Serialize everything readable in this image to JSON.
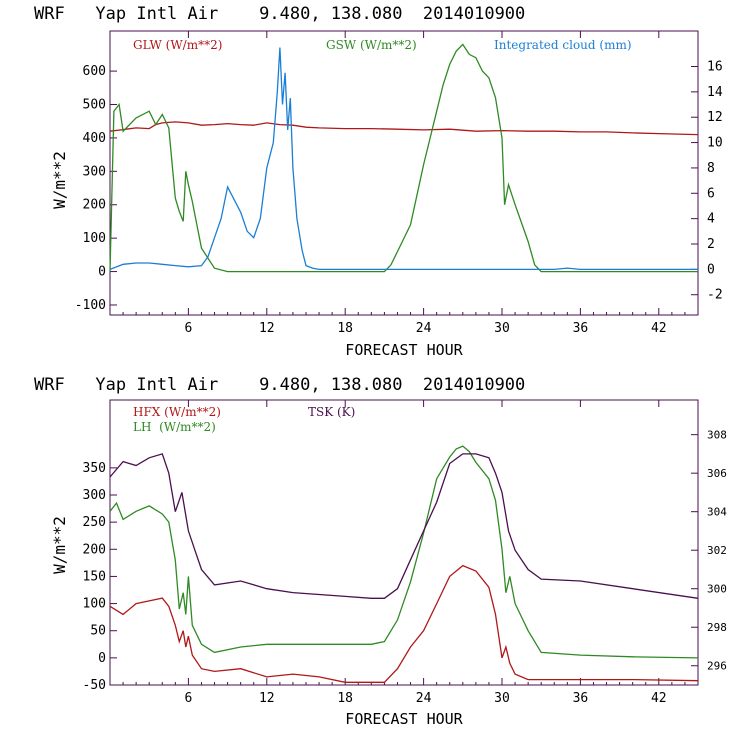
{
  "top": {
    "title": "WRF   Yap Intl Air    9.480, 138.080  2014010900",
    "ylabel": "W/m**2",
    "xlabel": "FORECAST HOUR",
    "legend": {
      "glw": "GLW (W/m**2)",
      "gsw": "GSW (W/m**2)",
      "cloud": "Integrated cloud (mm)"
    }
  },
  "bottom": {
    "title": "WRF   Yap Intl Air    9.480, 138.080  2014010900",
    "ylabel": "W/m**2",
    "xlabel": "FORECAST HOUR",
    "legend": {
      "hfx": "HFX (W/m**2)",
      "lh": "LH  (W/m**2)",
      "tsk": "TSK (K)"
    }
  },
  "colors": {
    "red": "#b01818",
    "green": "#2f8a24",
    "blue": "#1a7fd4",
    "purple": "#4a0f4f",
    "axis": "#4a0f4f"
  },
  "chart_data": [
    {
      "type": "line",
      "title": "WRF   Yap Intl Air    9.480, 138.080  2014010900",
      "xlabel": "FORECAST HOUR",
      "ylabel": "W/m**2",
      "xlim": [
        0,
        45
      ],
      "ylim": [
        -130,
        720
      ],
      "y2lim": [
        -3.6,
        18.8
      ],
      "xticks": [
        6,
        12,
        18,
        24,
        30,
        36,
        42
      ],
      "yticks": [
        -100,
        0,
        100,
        200,
        300,
        400,
        500,
        600
      ],
      "y2ticks": [
        -2,
        0,
        2,
        4,
        6,
        8,
        10,
        12,
        14,
        16
      ],
      "series": [
        {
          "name": "GLW (W/m**2)",
          "axis": "left",
          "x": [
            0,
            1,
            2,
            3,
            3.5,
            4,
            5,
            6,
            7,
            8,
            9,
            10,
            11,
            12,
            13,
            14,
            15,
            16,
            18,
            20,
            22,
            24,
            26,
            28,
            30,
            32,
            34,
            36,
            38,
            40,
            42,
            45
          ],
          "y": [
            420,
            425,
            430,
            428,
            440,
            445,
            448,
            445,
            438,
            440,
            443,
            440,
            438,
            445,
            440,
            438,
            432,
            430,
            428,
            428,
            426,
            424,
            426,
            420,
            422,
            420,
            420,
            418,
            418,
            415,
            413,
            410
          ]
        },
        {
          "name": "GSW (W/m**2)",
          "axis": "left",
          "x": [
            0,
            0.3,
            0.7,
            1,
            2,
            3,
            3.5,
            4,
            4.5,
            5,
            5.3,
            5.6,
            5.8,
            6,
            6.3,
            6.6,
            7,
            7.5,
            8,
            9,
            12,
            18,
            21,
            21.5,
            22,
            23,
            24,
            25,
            25.5,
            26,
            26.5,
            27,
            27.5,
            28,
            28.5,
            29,
            29.5,
            30,
            30.2,
            30.5,
            31,
            32,
            32.5,
            33,
            36,
            45
          ],
          "y": [
            0,
            480,
            500,
            420,
            460,
            480,
            440,
            470,
            430,
            220,
            180,
            150,
            300,
            260,
            210,
            150,
            70,
            40,
            10,
            0,
            0,
            0,
            0,
            20,
            60,
            140,
            320,
            480,
            560,
            620,
            660,
            680,
            650,
            640,
            600,
            580,
            520,
            400,
            200,
            260,
            200,
            90,
            20,
            0,
            0,
            0
          ]
        },
        {
          "name": "Integrated cloud (mm)",
          "axis": "right",
          "x": [
            0,
            1,
            2,
            3,
            4,
            5,
            6,
            7,
            7.5,
            8,
            8.5,
            9,
            9.5,
            10,
            10.5,
            11,
            11.5,
            12,
            12.5,
            12.8,
            13,
            13.2,
            13.4,
            13.6,
            13.8,
            14,
            14.3,
            14.7,
            15,
            15.5,
            16,
            18,
            20,
            22,
            24,
            26,
            28,
            30,
            32,
            34,
            35,
            36,
            45
          ],
          "y": [
            0.0,
            0.4,
            0.5,
            0.5,
            0.4,
            0.3,
            0.2,
            0.3,
            1.0,
            2.5,
            4.0,
            6.5,
            5.5,
            4.5,
            3.0,
            2.5,
            4.0,
            8.0,
            10.0,
            14.0,
            17.5,
            13.0,
            15.5,
            11.0,
            13.5,
            8.0,
            4.0,
            1.5,
            0.3,
            0.1,
            0.0,
            0.0,
            0.0,
            0.0,
            0.0,
            0.0,
            0.0,
            0.0,
            0.0,
            0.0,
            0.1,
            0.0,
            0.0
          ]
        }
      ]
    },
    {
      "type": "line",
      "title": "WRF   Yap Intl Air    9.480, 138.080  2014010900",
      "xlabel": "FORECAST HOUR",
      "ylabel": "W/m**2",
      "xlim": [
        0,
        45
      ],
      "ylim": [
        -50,
        475
      ],
      "y2lim": [
        295.0,
        309.8
      ],
      "xticks": [
        6,
        12,
        18,
        24,
        30,
        36,
        42
      ],
      "yticks": [
        -50,
        0,
        50,
        100,
        150,
        200,
        250,
        300,
        350
      ],
      "y2ticks": [
        296,
        298,
        300,
        302,
        304,
        306,
        308
      ],
      "series": [
        {
          "name": "HFX (W/m**2)",
          "axis": "left",
          "x": [
            0,
            1,
            2,
            3,
            4,
            4.5,
            5,
            5.3,
            5.6,
            5.8,
            6,
            6.3,
            7,
            8,
            10,
            12,
            14,
            16,
            18,
            20,
            21,
            22,
            23,
            24,
            25,
            26,
            27,
            28,
            29,
            29.5,
            30,
            30.3,
            30.6,
            31,
            32,
            33,
            36,
            40,
            45
          ],
          "y": [
            95,
            80,
            100,
            105,
            110,
            95,
            60,
            30,
            50,
            20,
            40,
            5,
            -20,
            -25,
            -20,
            -35,
            -30,
            -35,
            -45,
            -45,
            -45,
            -20,
            20,
            50,
            100,
            150,
            170,
            160,
            130,
            80,
            0,
            20,
            -10,
            -30,
            -40,
            -40,
            -40,
            -40,
            -42
          ]
        },
        {
          "name": "LH  (W/m**2)",
          "axis": "left",
          "x": [
            0,
            0.5,
            1,
            2,
            3,
            4,
            4.5,
            5,
            5.3,
            5.6,
            5.8,
            6,
            6.3,
            7,
            8,
            10,
            12,
            14,
            16,
            18,
            20,
            21,
            22,
            23,
            24,
            25,
            26,
            26.5,
            27,
            27.5,
            28,
            29,
            29.5,
            30,
            30.3,
            30.6,
            31,
            32,
            33,
            36,
            40,
            45
          ],
          "y": [
            270,
            285,
            255,
            270,
            280,
            265,
            250,
            180,
            90,
            120,
            80,
            150,
            60,
            25,
            10,
            20,
            25,
            25,
            25,
            25,
            25,
            30,
            70,
            140,
            230,
            330,
            370,
            385,
            390,
            380,
            360,
            330,
            290,
            200,
            120,
            150,
            100,
            50,
            10,
            5,
            2,
            0
          ]
        },
        {
          "name": "TSK (K)",
          "axis": "right",
          "x": [
            0,
            1,
            2,
            3,
            4,
            4.5,
            5,
            5.5,
            6,
            6.5,
            7,
            8,
            10,
            12,
            14,
            16,
            18,
            20,
            21,
            22,
            23,
            24,
            25,
            26,
            27,
            28,
            29,
            29.5,
            30,
            30.5,
            31,
            32,
            33,
            36,
            40,
            45
          ],
          "y": [
            305.8,
            306.6,
            306.4,
            306.8,
            307.0,
            306.0,
            304.0,
            305.0,
            303.0,
            302.0,
            301.0,
            300.2,
            300.4,
            300.0,
            299.8,
            299.7,
            299.6,
            299.5,
            299.5,
            300.0,
            301.5,
            303.0,
            304.5,
            306.5,
            307.0,
            307.0,
            306.8,
            306.0,
            305.0,
            303.0,
            302.0,
            301.0,
            300.5,
            300.4,
            300.0,
            299.5
          ]
        }
      ]
    }
  ]
}
